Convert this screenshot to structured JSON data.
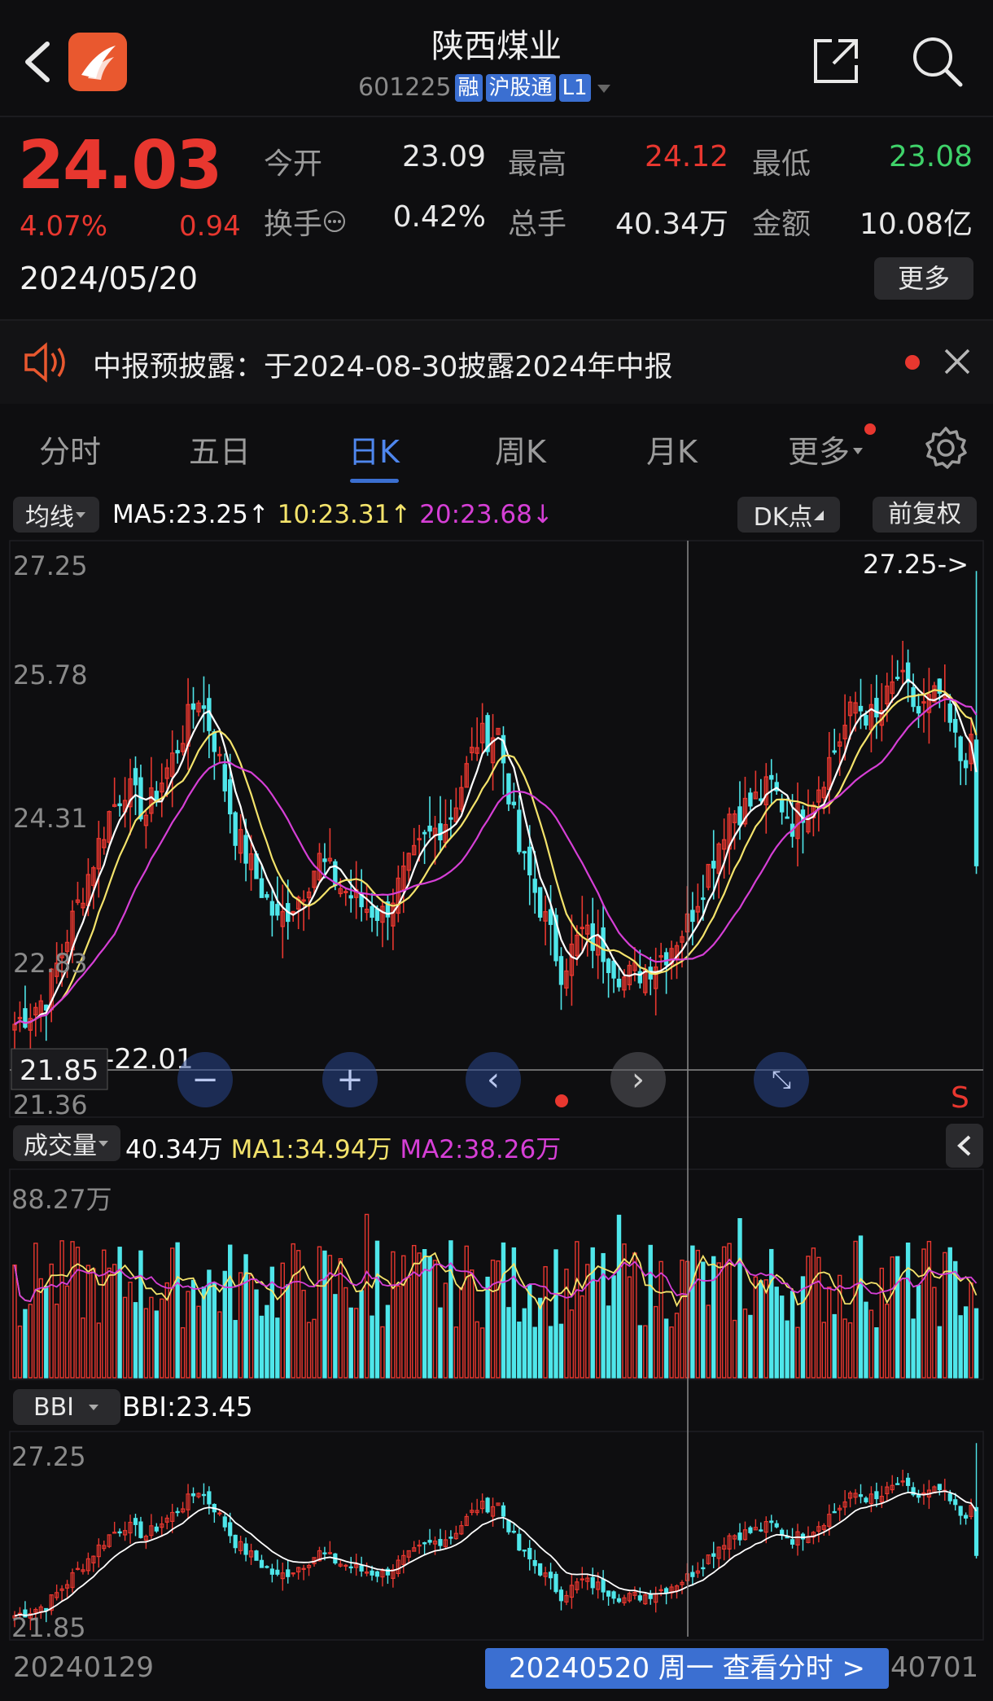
{
  "header": {
    "title": "陕西煤业",
    "code": "601225",
    "tags": [
      "融",
      "沪股通",
      "L1"
    ]
  },
  "quote": {
    "price": "24.03",
    "change_pct": "4.07%",
    "change": "0.94",
    "date": "2024/05/20",
    "stats": [
      {
        "label": "今开",
        "value": "23.09"
      },
      {
        "label": "最高",
        "value": "24.12"
      },
      {
        "label": "最低",
        "value": "23.08"
      },
      {
        "label": "换手",
        "value": "0.42%"
      },
      {
        "label": "总手",
        "value": "40.34万"
      },
      {
        "label": "金额",
        "value": "10.08亿"
      }
    ],
    "more_label": "更多"
  },
  "notice": {
    "text": "中报预披露：于2024-08-30披露2024年中报"
  },
  "tabs": [
    "分时",
    "五日",
    "日K",
    "周K",
    "月K",
    "更多"
  ],
  "active_tab": "日K",
  "ma_bar": {
    "selector": "均线",
    "ma5": "MA5:23.25",
    "ma10": "10:23.31",
    "ma20": "20:23.68",
    "dk_label": "DK点",
    "adjust_label": "前复权"
  },
  "kline": {
    "y_labels": [
      "27.25",
      "25.78",
      "24.31",
      "22.83",
      "21.36"
    ],
    "high_marker": "27.25->",
    "low_marker": "-22.01",
    "crosshair_price": "21.85",
    "s_marker": "S"
  },
  "volume": {
    "selector": "成交量",
    "value": "40.34万",
    "ma1": "MA1:34.94万",
    "ma2": "MA2:38.26万",
    "max_label": "88.27万"
  },
  "bbi": {
    "selector": "BBI",
    "value": "BBI:23.45",
    "y_top": "27.25",
    "y_bottom": "21.85"
  },
  "footer": {
    "start_date": "20240129",
    "cursor_label": "20240520 周一 查看分时 >",
    "end_date": "40701"
  },
  "colors": {
    "up": "#e8372f",
    "down": "#4fe6ea",
    "ma5": "#ffffff",
    "ma10": "#f4e36b",
    "ma20": "#d63fd6",
    "accent": "#3b6fd1"
  }
}
